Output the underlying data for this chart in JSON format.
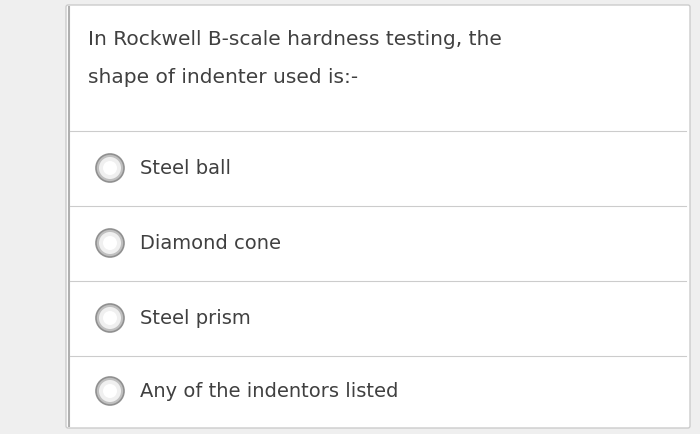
{
  "background_color": "#efefef",
  "card_color": "#ffffff",
  "question_line1": "In Rockwell B-scale hardness testing, the",
  "question_line2": "shape of indenter used is:-",
  "options": [
    "Steel ball",
    "Diamond cone",
    "Steel prism",
    "Any of the indentors listed"
  ],
  "text_color": "#404040",
  "question_fontsize": 14.5,
  "option_fontsize": 14,
  "divider_color": "#cccccc",
  "left_border_color": "#b0b0b0",
  "circle_outer_color": "#c0c0c0",
  "circle_inner_color": "#f0f0f0",
  "circle_center_color": "#ffffff"
}
